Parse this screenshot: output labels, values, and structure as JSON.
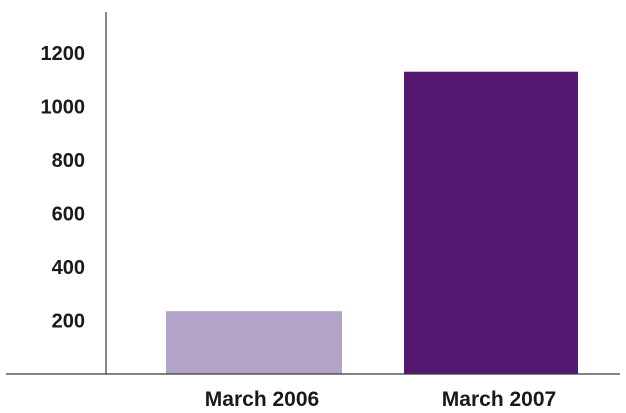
{
  "chart_data": {
    "type": "bar",
    "categories": [
      "March 2006",
      "March 2007"
    ],
    "values": [
      235,
      1130
    ],
    "colors": [
      "#b3a3c8",
      "#541872"
    ],
    "yticks": [
      200,
      400,
      600,
      800,
      1000,
      1200
    ],
    "ylim": [
      0,
      1350
    ],
    "grid": false,
    "legend": "none",
    "title": "",
    "xlabel": "",
    "ylabel": ""
  }
}
